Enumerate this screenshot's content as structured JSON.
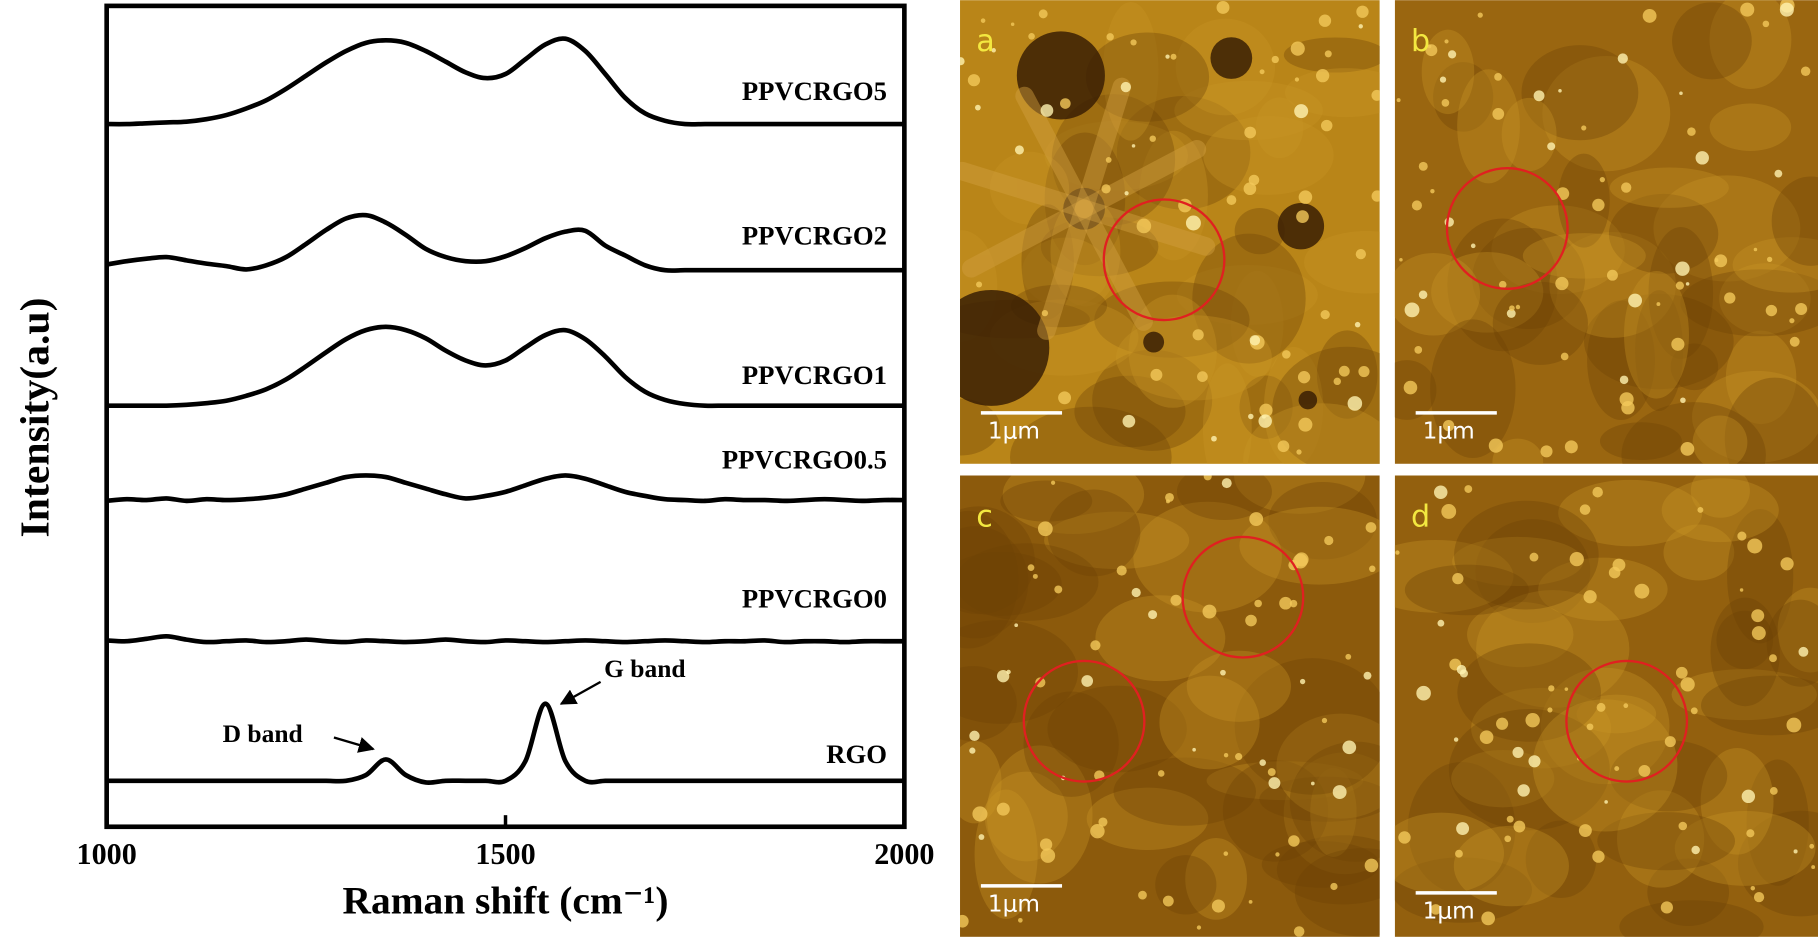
{
  "chart_data": {
    "type": "line",
    "xlabel": "Raman shift (cm⁻¹)",
    "ylabel": "Intensity(a.u)",
    "xlim": [
      1000,
      2000
    ],
    "xticks": [
      1000,
      1500,
      2000
    ],
    "ylim": [
      0,
      100
    ],
    "x": [
      1000,
      1025,
      1050,
      1075,
      1100,
      1125,
      1150,
      1175,
      1200,
      1225,
      1250,
      1275,
      1300,
      1325,
      1350,
      1375,
      1400,
      1425,
      1450,
      1475,
      1500,
      1525,
      1550,
      1575,
      1600,
      1625,
      1650,
      1675,
      1700,
      1725,
      1750,
      1775,
      1800,
      1825,
      1850,
      1875,
      1900,
      1925,
      1950,
      1975,
      2000
    ],
    "series": [
      {
        "name": "PPVCRGO5",
        "color": "#000000",
        "values": [
          85.6,
          85.6,
          85.7,
          85.8,
          85.9,
          86.2,
          86.7,
          87.5,
          88.5,
          89.9,
          91.5,
          93.1,
          94.5,
          95.5,
          95.8,
          95.5,
          94.5,
          93.2,
          91.9,
          91.2,
          91.7,
          93.5,
          95.3,
          96.0,
          94.5,
          91.7,
          88.8,
          86.9,
          86.0,
          85.6,
          85.6,
          85.6,
          85.6,
          85.6,
          85.6,
          85.6,
          85.6,
          85.6,
          85.6,
          85.6,
          85.6
        ]
      },
      {
        "name": "PPVCRGO2",
        "color": "#000000",
        "values": [
          68.5,
          68.9,
          69.2,
          69.4,
          69.0,
          68.6,
          68.3,
          67.9,
          68.4,
          69.4,
          71.0,
          72.7,
          74.1,
          74.5,
          73.6,
          72.1,
          70.4,
          69.4,
          68.9,
          68.9,
          69.5,
          70.5,
          71.7,
          72.5,
          72.6,
          70.8,
          69.6,
          68.4,
          67.8,
          67.8,
          67.8,
          67.8,
          67.8,
          67.8,
          67.8,
          67.8,
          67.8,
          67.8,
          67.8,
          67.8,
          67.8
        ]
      },
      {
        "name": "PPVCRGO1",
        "color": "#000000",
        "values": [
          51.3,
          51.3,
          51.3,
          51.3,
          51.4,
          51.6,
          51.9,
          52.5,
          53.3,
          54.5,
          56.1,
          57.8,
          59.4,
          60.5,
          60.9,
          60.5,
          59.5,
          58.0,
          56.8,
          56.2,
          56.8,
          58.4,
          59.9,
          60.5,
          59.4,
          57.3,
          54.8,
          53.0,
          52.0,
          51.5,
          51.3,
          51.3,
          51.3,
          51.3,
          51.3,
          51.3,
          51.3,
          51.3,
          51.3,
          51.3,
          51.3
        ]
      },
      {
        "name": "PPVCRGO0.5",
        "color": "#000000",
        "values": [
          39.7,
          39.9,
          39.8,
          40.0,
          39.7,
          39.9,
          39.8,
          39.9,
          40.1,
          40.5,
          41.2,
          41.9,
          42.6,
          42.8,
          42.6,
          41.9,
          41.2,
          40.5,
          40.0,
          40.3,
          40.8,
          41.6,
          42.4,
          42.8,
          42.4,
          41.6,
          40.8,
          40.3,
          39.9,
          39.8,
          39.7,
          39.9,
          39.8,
          39.8,
          39.7,
          39.8,
          39.9,
          39.8,
          39.7,
          39.8,
          39.8
        ]
      },
      {
        "name": "PPVCRGO0",
        "color": "#000000",
        "values": [
          22.7,
          22.6,
          22.9,
          23.2,
          22.8,
          22.5,
          22.6,
          22.7,
          22.5,
          22.6,
          22.8,
          22.6,
          22.5,
          22.7,
          22.6,
          22.5,
          22.6,
          22.8,
          22.6,
          22.5,
          22.7,
          22.6,
          22.5,
          22.6,
          22.7,
          22.6,
          22.5,
          22.6,
          22.7,
          22.6,
          22.5,
          22.6,
          22.6,
          22.7,
          22.5,
          22.6,
          22.6,
          22.5,
          22.6,
          22.6,
          22.6
        ]
      },
      {
        "name": "RGO",
        "color": "#000000",
        "values": [
          5.6,
          5.6,
          5.6,
          5.6,
          5.6,
          5.6,
          5.6,
          5.6,
          5.6,
          5.6,
          5.6,
          5.6,
          5.6,
          6.3,
          8.2,
          6.3,
          5.4,
          5.6,
          5.6,
          5.6,
          5.6,
          8.0,
          15.0,
          8.0,
          5.6,
          5.6,
          5.6,
          5.6,
          5.6,
          5.6,
          5.6,
          5.6,
          5.6,
          5.6,
          5.6,
          5.6,
          5.6,
          5.6,
          5.6,
          5.6,
          5.6
        ]
      }
    ],
    "annotations": [
      "D band",
      "G band"
    ]
  },
  "panels": [
    {
      "label": "a",
      "scale": "1μm"
    },
    {
      "label": "b",
      "scale": "1μm"
    },
    {
      "label": "c",
      "scale": "1μm"
    },
    {
      "label": "d",
      "scale": "1μm"
    }
  ]
}
